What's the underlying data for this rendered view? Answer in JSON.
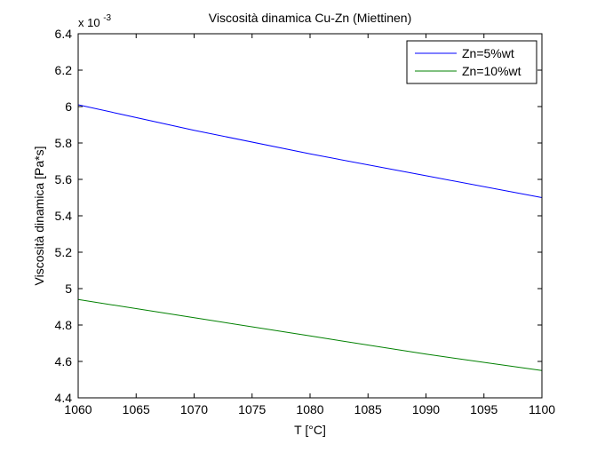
{
  "chart_data": {
    "type": "line",
    "title": "Viscosità dinamica Cu-Zn (Miettinen)",
    "xlabel": "T [°C]",
    "ylabel": "Viscosità dinamica [Pa*s]",
    "exponent_label": "x 10",
    "exponent_power": "-3",
    "xlim": [
      1060,
      1100
    ],
    "ylim": [
      4.4,
      6.4
    ],
    "xticks": [
      1060,
      1065,
      1070,
      1075,
      1080,
      1085,
      1090,
      1095,
      1100
    ],
    "xtick_labels": [
      "1060",
      "1065",
      "1070",
      "1075",
      "1080",
      "1085",
      "1090",
      "1095",
      "1100"
    ],
    "yticks": [
      4.4,
      4.6,
      4.8,
      5.0,
      5.2,
      5.4,
      5.6,
      5.8,
      6.0,
      6.2,
      6.4
    ],
    "ytick_labels": [
      "4.4",
      "4.6",
      "4.8",
      "5",
      "5.2",
      "5.4",
      "5.6",
      "5.8",
      "6",
      "6.2",
      "6.4"
    ],
    "grid": false,
    "legend_position": "top-right",
    "x": [
      1060,
      1070,
      1080,
      1090,
      1100
    ],
    "series": [
      {
        "name": "Zn=5%wt",
        "color": "#0000ff",
        "values": [
          6.01,
          5.87,
          5.74,
          5.62,
          5.5
        ]
      },
      {
        "name": "Zn=10%wt",
        "color": "#008000",
        "values": [
          4.94,
          4.84,
          4.74,
          4.64,
          4.55
        ]
      }
    ]
  }
}
